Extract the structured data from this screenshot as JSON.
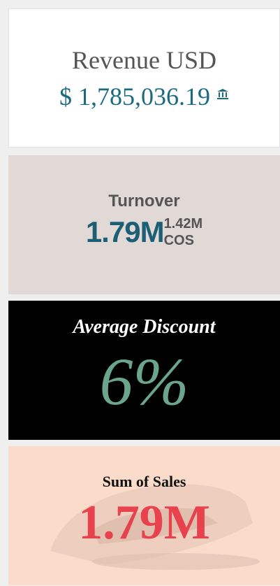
{
  "cards": [
    {
      "title": "Revenue USD",
      "value": "$ 1,785,036.19"
    },
    {
      "title": "Turnover",
      "value": "1.79M",
      "secondary_value": "1.42M",
      "secondary_label": "COS"
    },
    {
      "title": "Average Discount",
      "value": "6%"
    },
    {
      "title": "Sum of Sales",
      "value": "1.79M"
    }
  ]
}
